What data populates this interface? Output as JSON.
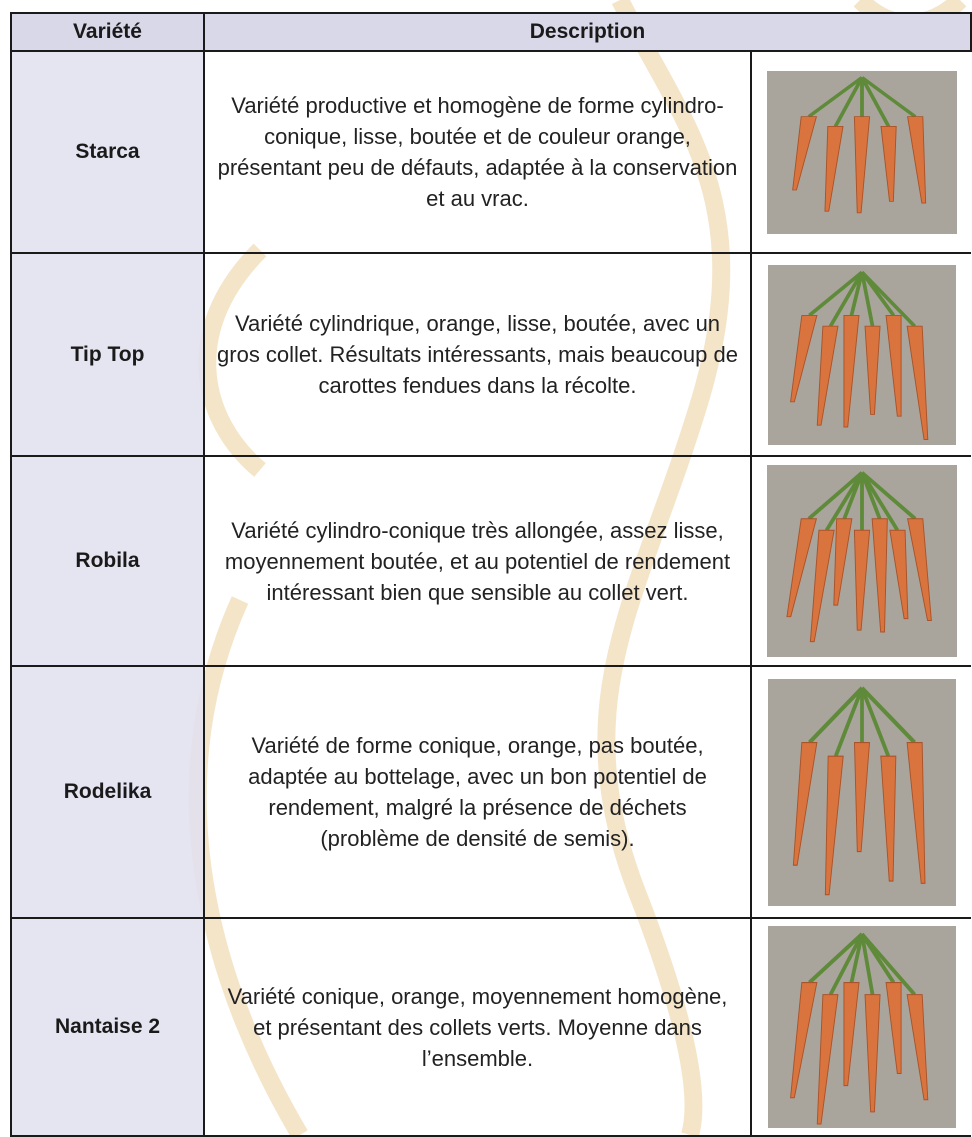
{
  "table": {
    "header": [
      "Variété",
      "Description"
    ],
    "rows": [
      [
        "Starca",
        "Variété productive et homogène de forme cylindro-conique, lisse, boutée et de couleur orange, présentant peu de défauts, adaptée à la conservation et au vrac."
      ],
      [
        "Tip Top",
        "Variété cylindrique, orange, lisse, boutée, avec un gros collet. Résultats intéressants, mais beaucoup de carottes fendues dans la récolte."
      ],
      [
        "Robila",
        "Variété cylindro-conique très allongée, assez lisse, moyennement boutée, et au potentiel de rendement intéressant bien que sensible au collet vert."
      ],
      [
        "Rodelika",
        "Variété de forme conique, orange, pas boutée, adaptée au bottelage, avec un bon potentiel de rendement, malgré la présence de déchets (problème de densité de semis)."
      ],
      [
        "Nantaise 2",
        "Variété conique, orange, moyennement homogène, et présentant des collets verts. Moyenne dans l’ensemble."
      ]
    ]
  }
}
